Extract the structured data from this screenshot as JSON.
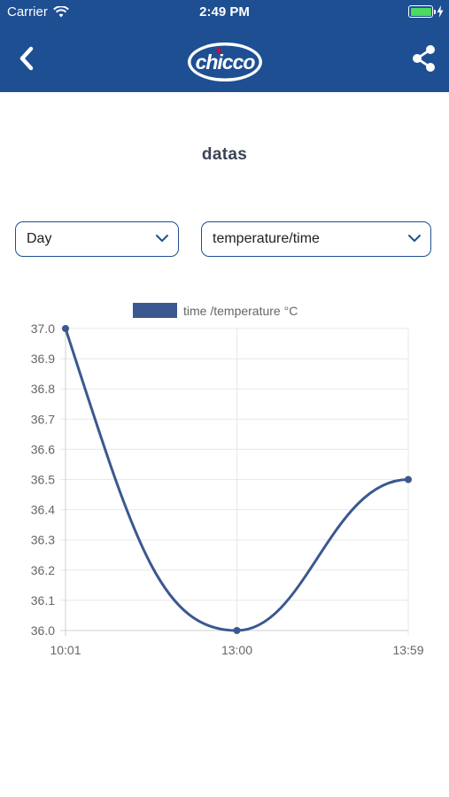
{
  "status_bar": {
    "carrier": "Carrier",
    "time": "2:49 PM",
    "battery_level": 1.0
  },
  "nav": {
    "back_icon": "chevron-left-icon",
    "logo_text": "chicco",
    "share_icon": "share-icon",
    "color": "#1e4f93"
  },
  "page": {
    "title": "datas"
  },
  "filters": {
    "period": "Day",
    "metric": "temperature/time"
  },
  "chart_data": {
    "type": "line",
    "legend": "time /temperature °C",
    "legend_position": "top",
    "x": [
      "10:01",
      "13:00",
      "13:59"
    ],
    "values": [
      37.0,
      36.0,
      36.5
    ],
    "y_ticks": [
      "37.0",
      "36.9",
      "36.8",
      "36.7",
      "36.6",
      "36.5",
      "36.4",
      "36.3",
      "36.2",
      "36.1",
      "36.0"
    ],
    "ylim": [
      36.0,
      37.0
    ],
    "grid": true,
    "color": "#3b5890"
  }
}
